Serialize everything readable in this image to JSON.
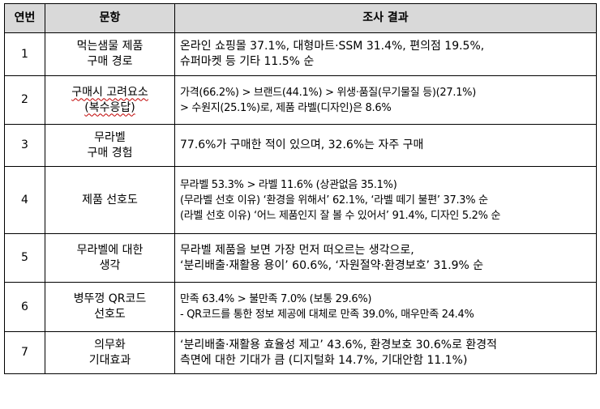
{
  "table": {
    "headers": {
      "no": "연번",
      "item": "문항",
      "result": "조사 결과"
    },
    "rows": [
      {
        "no": "1",
        "item": [
          "먹는샘물 제품",
          "구매 경로"
        ],
        "result": [
          "온라인 쇼핑몰 37.1%, 대형마트·SSM 31.4%, 편의점 19.5%,",
          "슈퍼마켓 등 기타 11.5% 순"
        ]
      },
      {
        "no": "2",
        "item": [
          "구매시 고려요소",
          "(복수응답)"
        ],
        "result": [
          "가격(66.2%) > 브랜드(44.1%) > 위생·품질(무기물질 등)(27.1%)",
          "> 수원지(25.1%)로, 제품 라벨(디자인)은 8.6%"
        ]
      },
      {
        "no": "3",
        "item": [
          "무라벨",
          "구매 경험"
        ],
        "result": [
          "77.6%가 구매한 적이 있으며, 32.6%는 자주 구매"
        ]
      },
      {
        "no": "4",
        "item": [
          "제품 선호도"
        ],
        "result": [
          "무라벨 53.3% > 라벨 11.6% (상관없음 35.1%)",
          "(무라벨 선호 이유) ‘환경을 위해서’ 62.1%, ‘라벨 떼기 불편’ 37.3% 순",
          "(라벨 선호 이유) ‘어느 제품인지 잘 볼 수 있어서’ 91.4%, 디자인 5.2% 순"
        ]
      },
      {
        "no": "5",
        "item": [
          "무라벨에 대한",
          "생각"
        ],
        "result": [
          "무라벨 제품을 보면 가장 먼저 떠오르는 생각으로,",
          "‘분리배출·재활용 용이’ 60.6%, ‘자원절약·환경보호’ 31.9% 순"
        ]
      },
      {
        "no": "6",
        "item": [
          "병뚜껑 QR코드",
          "선호도"
        ],
        "result": [
          "만족 63.4% > 불만족 7.0% (보통 29.6%)",
          "- QR코드를 통한 정보 제공에 대체로 만족 39.0%, 매우만족 24.4%"
        ]
      },
      {
        "no": "7",
        "item": [
          "의무화",
          "기대효과"
        ],
        "result": [
          "‘분리배출·재활용 효율성 제고’ 43.6%, 환경보호 30.6%로 환경적",
          "측면에 대한 기대가 큼 (디지털화 14.7%, 기대안함 11.1%)"
        ]
      }
    ]
  }
}
